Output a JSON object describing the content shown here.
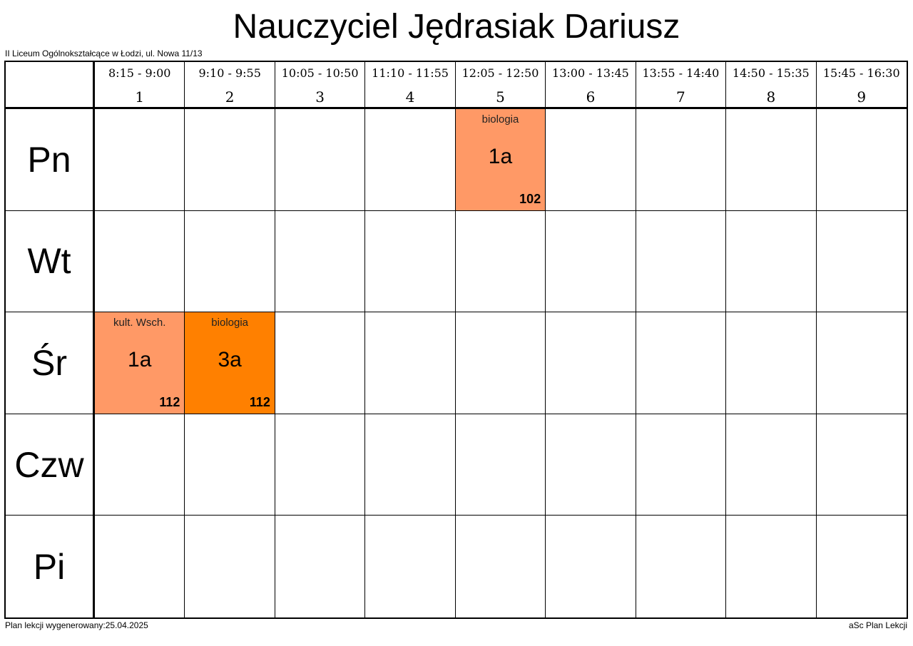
{
  "title": "Nauczyciel Jędrasiak Dariusz",
  "school": "II Liceum Ogólnokształcące w Łodzi, ul. Nowa 11/13",
  "footer": {
    "generated": "Plan lekcji wygenerowany:25.04.2025",
    "app": "aSc Plan Lekcji"
  },
  "periods": [
    {
      "time": "8:15 - 9:00",
      "num": "1"
    },
    {
      "time": "9:10 - 9:55",
      "num": "2"
    },
    {
      "time": "10:05 - 10:50",
      "num": "3"
    },
    {
      "time": "11:10 - 11:55",
      "num": "4"
    },
    {
      "time": "12:05 - 12:50",
      "num": "5"
    },
    {
      "time": "13:00 - 13:45",
      "num": "6"
    },
    {
      "time": "13:55 - 14:40",
      "num": "7"
    },
    {
      "time": "14:50 - 15:35",
      "num": "8"
    },
    {
      "time": "15:45 - 16:30",
      "num": "9"
    }
  ],
  "days": [
    "Pn",
    "Wt",
    "Śr",
    "Czw",
    "Pi"
  ],
  "lessons": [
    {
      "day": 0,
      "period": 4,
      "subject": "biologia",
      "class": "1a",
      "room": "102",
      "color": "#FF9966"
    },
    {
      "day": 2,
      "period": 0,
      "subject": "kult. Wsch.",
      "class": "1a",
      "room": "112",
      "color": "#FF9966"
    },
    {
      "day": 2,
      "period": 1,
      "subject": "biologia",
      "class": "3a",
      "room": "112",
      "color": "#FF8000"
    }
  ]
}
